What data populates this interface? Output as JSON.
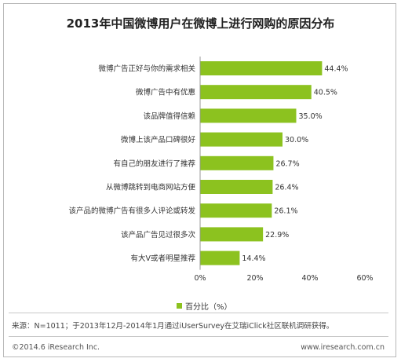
{
  "chart_data": {
    "type": "bar",
    "orientation": "horizontal",
    "title": "2013年中国微博用户在微博上进行网购的原因分布",
    "categories": [
      "微博广告正好与你的需求相关",
      "微博广告中有优惠",
      "该品牌值得信赖",
      "微博上该产品口碑很好",
      "有自己的朋友进行了推荐",
      "从微博跳转到电商网站方便",
      "该产品的微博广告有很多人评论或转发",
      "该产品广告见过很多次",
      "有大V或者明星推荐"
    ],
    "series": [
      {
        "name": "百分比（%）",
        "values": [
          44.4,
          40.5,
          35.0,
          30.0,
          26.7,
          26.4,
          26.1,
          22.9,
          14.4
        ]
      }
    ],
    "value_labels": [
      "44.4%",
      "40.5%",
      "35.0%",
      "30.0%",
      "26.7%",
      "26.4%",
      "26.1%",
      "22.9%",
      "14.4%"
    ],
    "xlim": [
      0,
      60
    ],
    "x_ticks": [
      0,
      20,
      40,
      60
    ],
    "x_tick_labels": [
      "0%",
      "20%",
      "40%",
      "60%"
    ],
    "legend_position": "bottom",
    "bar_color": "#8cc21f",
    "grid": false
  },
  "source_text": "来源：N=1011；于2013年12月-2014年1月通过iUserSurvey在艾瑞iClick社区联机调研获得。",
  "footer": {
    "copyright": "©2014.6 iResearch Inc.",
    "website": "www.iresearch.com.cn"
  }
}
